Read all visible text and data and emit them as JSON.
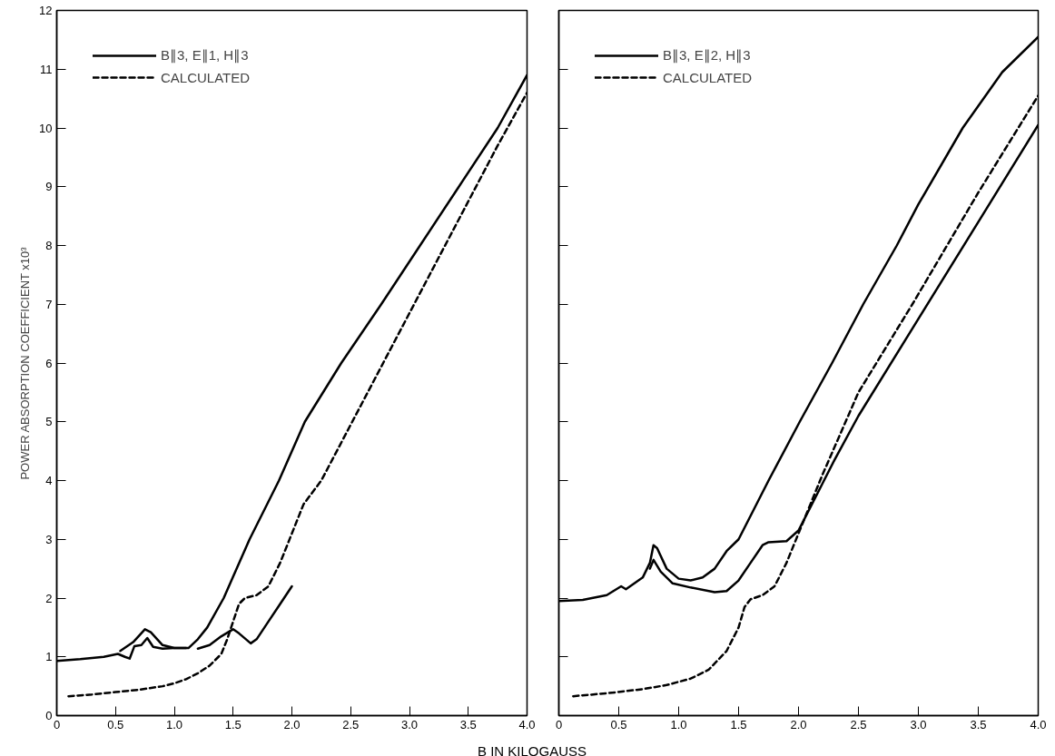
{
  "chart_data": [
    {
      "type": "line",
      "xlabel": "B IN KILOGAUSS",
      "ylabel": "POWER ABSORPTION COEFFICIENT x10³",
      "legend": "top left",
      "grid": false,
      "xlim": [
        0,
        4
      ],
      "ylim": [
        0,
        12
      ],
      "xticks": [
        0,
        0.5,
        {
          "value": 1,
          "label": "1.0"
        },
        1.5,
        {
          "value": 2,
          "label": "2.0"
        },
        2.5,
        {
          "value": 3,
          "label": "3.0"
        },
        3.5,
        {
          "value": 4,
          "label": "4.0"
        }
      ],
      "yticks": [
        0,
        1,
        2,
        3,
        4,
        5,
        6,
        7,
        8,
        9,
        10,
        11,
        12
      ],
      "series": [
        {
          "name": "B∥3, E∥1, H∥3",
          "color": "#000000",
          "line_style": "solid",
          "x": [
            0,
            0.2,
            0.4,
            0.52,
            0.58,
            0.62,
            0.66,
            0.72,
            0.77,
            0.82,
            0.9,
            1.0,
            1.12,
            1.2,
            1.28,
            1.42,
            1.64,
            1.89,
            2.11,
            2.42,
            2.76,
            3.09,
            3.42,
            3.75,
            4.0
          ],
          "values": [
            0.93,
            0.96,
            1.0,
            1.05,
            1.0,
            0.97,
            1.18,
            1.2,
            1.32,
            1.17,
            1.14,
            1.15,
            1.15,
            1.3,
            1.5,
            2,
            3,
            4,
            5,
            6,
            7,
            8,
            9,
            10,
            10.9
          ]
        },
        {
          "color": "#000000",
          "line_style": "solid",
          "x": [
            0.54,
            0.65,
            0.75,
            0.8,
            0.9,
            1.0,
            1.1
          ],
          "values": [
            1.1,
            1.25,
            1.47,
            1.42,
            1.2,
            1.15,
            1.15
          ]
        },
        {
          "color": "#000000",
          "line_style": "solid",
          "x": [
            1.2,
            1.3,
            1.4,
            1.5,
            1.55,
            1.65,
            1.7,
            1.8,
            1.9,
            2.0
          ],
          "values": [
            1.14,
            1.2,
            1.35,
            1.47,
            1.4,
            1.23,
            1.3,
            1.6,
            1.9,
            2.2
          ]
        },
        {
          "name": "CALCULATED",
          "color": "#000000",
          "line_style": "dashed",
          "x": [
            0.1,
            0.3,
            0.5,
            0.7,
            0.9,
            1.0,
            1.1,
            1.2,
            1.3,
            1.4,
            1.45,
            1.5,
            1.55,
            1.6,
            1.7,
            1.8,
            1.9,
            2.0,
            2.1,
            2.25,
            2.5,
            2.75,
            3.0,
            3.25,
            3.5,
            3.75,
            4.0
          ],
          "values": [
            0.33,
            0.36,
            0.4,
            0.44,
            0.5,
            0.55,
            0.62,
            0.72,
            0.85,
            1.05,
            1.3,
            1.6,
            1.9,
            2.0,
            2.05,
            2.2,
            2.6,
            3.1,
            3.6,
            4.0,
            4.95,
            5.9,
            6.85,
            7.8,
            8.75,
            9.7,
            10.6
          ]
        }
      ]
    },
    {
      "type": "line",
      "legend": "top left",
      "grid": false,
      "tick_labels": "x",
      "xlim": [
        0,
        4
      ],
      "ylim": [
        0,
        12
      ],
      "xticks": [
        0,
        0.5,
        {
          "value": 1,
          "label": "1.0"
        },
        1.5,
        {
          "value": 2,
          "label": "2.0"
        },
        2.5,
        {
          "value": 3,
          "label": "3.0"
        },
        3.5,
        {
          "value": 4,
          "label": "4.0"
        }
      ],
      "yticks": [
        0,
        1,
        2,
        3,
        4,
        5,
        6,
        7,
        8,
        9,
        10,
        11,
        12
      ],
      "series": [
        {
          "name": "B∥3, E∥2, H∥3",
          "color": "#000000",
          "line_style": "solid",
          "x": [
            0,
            0.2,
            0.4,
            0.52,
            0.56,
            0.7,
            0.76,
            0.79,
            0.82,
            0.9,
            1.0,
            1.1,
            1.2,
            1.3,
            1.4,
            1.5,
            1.75,
            2.01,
            2.28,
            2.54,
            2.82,
            3.0,
            3.37,
            3.7,
            4.0
          ],
          "values": [
            1.95,
            1.97,
            2.05,
            2.2,
            2.15,
            2.35,
            2.6,
            2.9,
            2.85,
            2.5,
            2.33,
            2.3,
            2.35,
            2.5,
            2.8,
            3.0,
            4,
            5,
            6,
            7,
            8,
            8.7,
            10,
            10.95,
            11.55
          ]
        },
        {
          "color": "#000000",
          "line_style": "solid",
          "x": [
            0.76,
            0.79,
            0.85,
            0.95,
            1.1,
            1.3,
            1.4,
            1.5,
            1.6,
            1.7,
            1.75,
            1.9,
            2.0,
            2.1,
            2.2,
            2.3,
            2.5,
            3.0,
            3.5,
            4.0
          ],
          "values": [
            2.5,
            2.65,
            2.45,
            2.25,
            2.18,
            2.1,
            2.12,
            2.3,
            2.6,
            2.9,
            2.95,
            2.97,
            3.15,
            3.55,
            3.95,
            4.35,
            5.1,
            6.75,
            8.4,
            10.05
          ]
        },
        {
          "name": "CALCULATED",
          "color": "#000000",
          "line_style": "dashed",
          "x": [
            0.12,
            0.4,
            0.7,
            0.9,
            1.1,
            1.25,
            1.4,
            1.5,
            1.55,
            1.6,
            1.7,
            1.8,
            1.9,
            2.0,
            2.1,
            2.2,
            2.35,
            2.5,
            2.95,
            3.5,
            4.0
          ],
          "values": [
            0.33,
            0.38,
            0.45,
            0.52,
            0.63,
            0.78,
            1.1,
            1.5,
            1.85,
            1.98,
            2.05,
            2.2,
            2.6,
            3.1,
            3.6,
            4.1,
            4.8,
            5.5,
            7.0,
            8.9,
            10.55
          ]
        }
      ]
    }
  ]
}
